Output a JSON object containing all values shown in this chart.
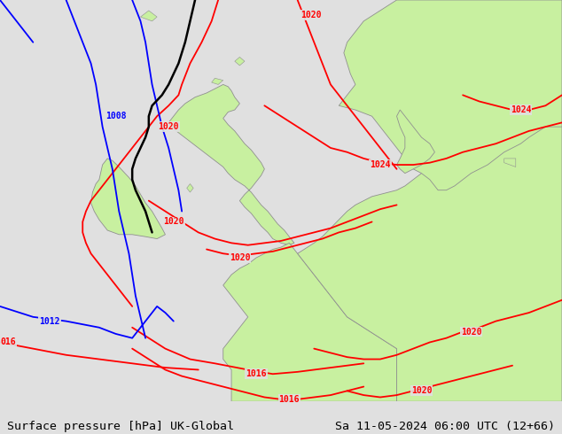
{
  "title_left": "Surface pressure [hPa] UK-Global",
  "title_right": "Sa 11-05-2024 06:00 UTC (12+66)",
  "bg_color": "#e0e0e0",
  "land_color": "#c8f0a0",
  "sea_color": "#e0e0e0",
  "border_color": "#909090",
  "fig_width": 6.34,
  "fig_height": 4.9,
  "dpi": 100,
  "text_fontsize": 9.5,
  "lon_min": -16.0,
  "lon_max": 18.0,
  "lat_min": 44.0,
  "lat_max": 63.0
}
